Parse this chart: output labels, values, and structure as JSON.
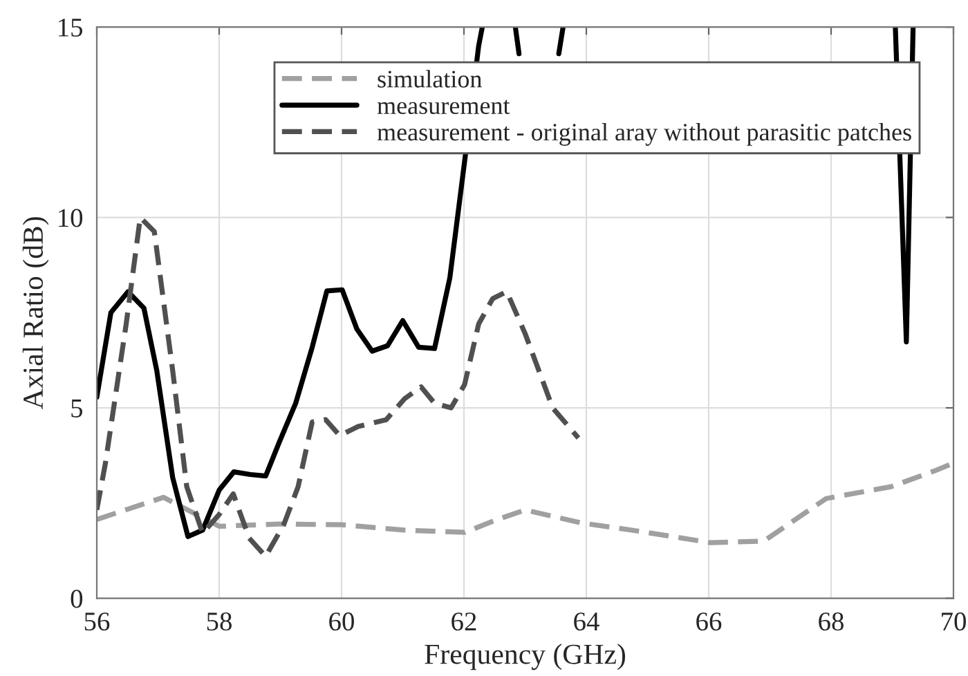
{
  "chart_data": {
    "type": "line",
    "xlabel": "Frequency (GHz)",
    "ylabel": "Axial Ratio (dB)",
    "xlim": [
      56,
      70
    ],
    "xticks": [
      56,
      58,
      60,
      62,
      64,
      66,
      68,
      70
    ],
    "ylim": [
      0,
      15
    ],
    "yticks": [
      0,
      5,
      10,
      15
    ],
    "grid": true,
    "legend": "top right",
    "marker": "none",
    "series": [
      {
        "name": "simulation",
        "color": "#a0a0a0",
        "line_style": "dashed",
        "x": [
          56.0,
          57.09,
          58.0,
          58.98,
          60.0,
          61.02,
          62.01,
          62.55,
          63.0,
          63.91,
          64.82,
          66.03,
          66.9,
          67.92,
          68.98,
          69.7,
          70.0
        ],
        "values": [
          2.07,
          2.65,
          1.89,
          1.95,
          1.93,
          1.79,
          1.73,
          2.07,
          2.32,
          1.98,
          1.77,
          1.46,
          1.5,
          2.62,
          2.93,
          3.35,
          3.55
        ]
      },
      {
        "name": "measurement",
        "color": "#000000",
        "line_style": "solid",
        "x": [
          56.0,
          56.23,
          56.51,
          56.77,
          56.98,
          57.24,
          57.49,
          57.73,
          58.0,
          58.24,
          58.51,
          58.76,
          58.98,
          59.25,
          59.52,
          59.76,
          60.01,
          60.25,
          60.5,
          60.75,
          61.0,
          61.26,
          61.52,
          61.77,
          62.02,
          62.24,
          62.3,
          62.55,
          62.84,
          62.9,
          63.2,
          63.55,
          63.62,
          66.0,
          69.05,
          69.23,
          69.34
        ],
        "values": [
          5.28,
          7.5,
          8.05,
          7.62,
          5.98,
          3.17,
          1.62,
          1.79,
          2.84,
          3.32,
          3.25,
          3.21,
          4.09,
          5.12,
          6.59,
          8.07,
          8.1,
          7.07,
          6.49,
          6.63,
          7.29,
          6.59,
          6.56,
          8.42,
          11.59,
          14.5,
          15,
          null,
          15,
          14.3,
          null,
          14.3,
          15,
          null,
          15,
          6.73,
          15
        ]
      },
      {
        "name": "measurement - original aray without parasitic patches",
        "color": "#505050",
        "line_style": "dashed",
        "x": [
          56.0,
          56.14,
          56.48,
          56.71,
          56.94,
          57.24,
          57.47,
          57.73,
          58.0,
          58.23,
          58.49,
          58.76,
          59.06,
          59.29,
          59.52,
          59.74,
          59.97,
          60.27,
          60.73,
          61.03,
          61.3,
          61.52,
          61.79,
          62.01,
          62.24,
          62.47,
          62.7,
          63.0,
          63.45,
          63.87
        ],
        "values": [
          2.32,
          3.54,
          7.2,
          10.0,
          9.63,
          5.98,
          2.93,
          1.71,
          2.2,
          2.74,
          1.58,
          1.1,
          1.95,
          2.93,
          4.63,
          4.69,
          4.27,
          4.51,
          4.69,
          5.24,
          5.55,
          5.12,
          5.0,
          5.61,
          7.2,
          7.87,
          8.05,
          6.95,
          5.0,
          4.21
        ]
      }
    ]
  }
}
